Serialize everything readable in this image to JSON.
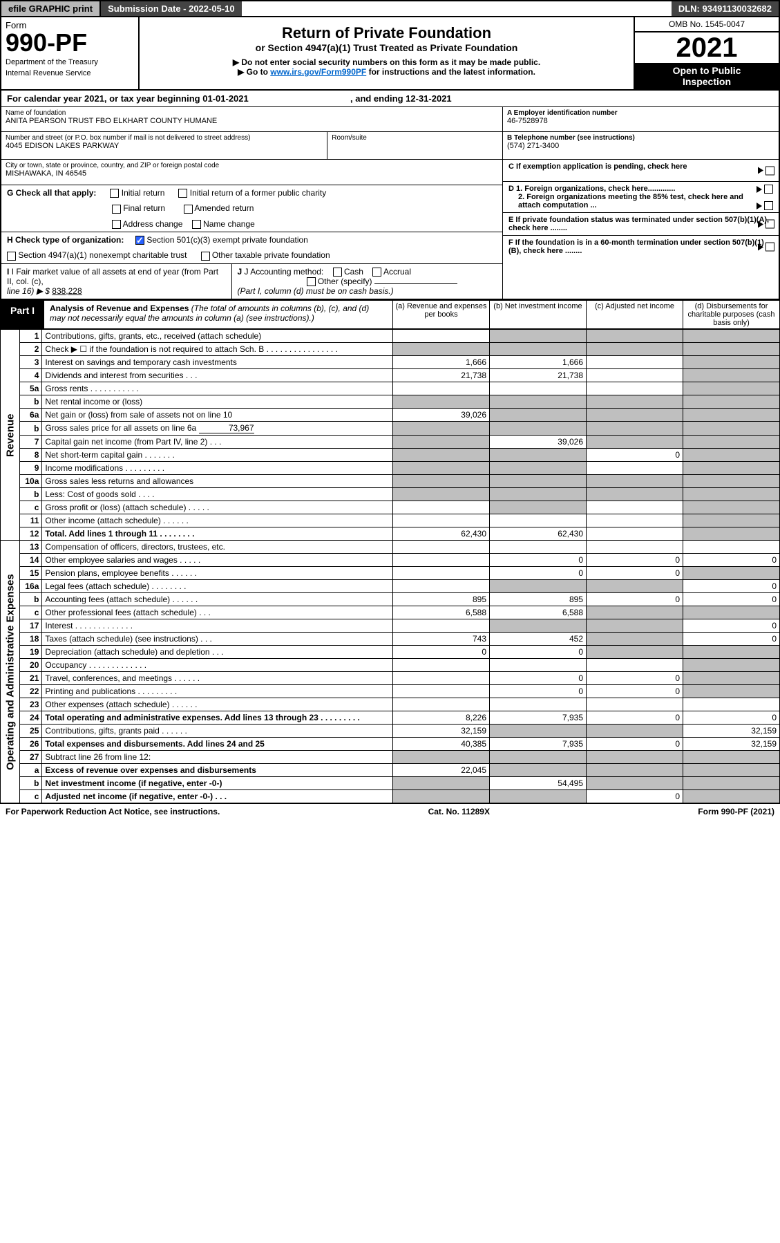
{
  "topbar": {
    "efile": "efile GRAPHIC print",
    "sub_label": "Submission Date - 2022-05-10",
    "dln": "DLN: 93491130032682"
  },
  "header": {
    "form_word": "Form",
    "form_no": "990-PF",
    "dept1": "Department of the Treasury",
    "dept2": "Internal Revenue Service",
    "title": "Return of Private Foundation",
    "subtitle": "or Section 4947(a)(1) Trust Treated as Private Foundation",
    "note1": "▶ Do not enter social security numbers on this form as it may be made public.",
    "note2_pre": "▶ Go to ",
    "note2_link": "www.irs.gov/Form990PF",
    "note2_post": " for instructions and the latest information.",
    "omb": "OMB No. 1545-0047",
    "year": "2021",
    "inspect1": "Open to Public",
    "inspect2": "Inspection"
  },
  "cal": {
    "pre": "For calendar year 2021, or tax year beginning ",
    "begin": "01-01-2021",
    "mid": ", and ending ",
    "end": "12-31-2021"
  },
  "info": {
    "name_lbl": "Name of foundation",
    "name_val": "ANITA PEARSON TRUST FBO ELKHART COUNTY HUMANE",
    "addr_lbl": "Number and street (or P.O. box number if mail is not delivered to street address)",
    "addr_val": "4045 EDISON LAKES PARKWAY",
    "room_lbl": "Room/suite",
    "city_lbl": "City or town, state or province, country, and ZIP or foreign postal code",
    "city_val": "MISHAWAKA, IN  46545",
    "a_lbl": "A Employer identification number",
    "a_val": "46-7528978",
    "b_lbl": "B Telephone number (see instructions)",
    "b_val": "(574) 271-3400",
    "c_lbl": "C If exemption application is pending, check here",
    "d1_lbl": "D 1. Foreign organizations, check here.............",
    "d2_lbl": "2. Foreign organizations meeting the 85% test, check here and attach computation ...",
    "e_lbl": "E  If private foundation status was terminated under section 507(b)(1)(A), check here ........",
    "f_lbl": "F  If the foundation is in a 60-month termination under section 507(b)(1)(B), check here ........"
  },
  "g": {
    "label": "G Check all that apply:",
    "c1": "Initial return",
    "c2": "Initial return of a former public charity",
    "c3": "Final return",
    "c4": "Amended return",
    "c5": "Address change",
    "c6": "Name change"
  },
  "h": {
    "label": "H Check type of organization:",
    "c1": "Section 501(c)(3) exempt private foundation",
    "c2": "Section 4947(a)(1) nonexempt charitable trust",
    "c3": "Other taxable private foundation"
  },
  "i": {
    "label": "I Fair market value of all assets at end of year (from Part II, col. (c),",
    "line": "line 16) ▶ $",
    "val": "838,228"
  },
  "j": {
    "label": "J Accounting method:",
    "c1": "Cash",
    "c2": "Accrual",
    "c3": "Other (specify)",
    "note": "(Part I, column (d) must be on cash basis.)"
  },
  "part1": {
    "label": "Part I",
    "title": "Analysis of Revenue and Expenses",
    "note": "(The total of amounts in columns (b), (c), and (d) may not necessarily equal the amounts in column (a) (see instructions).)",
    "col_a": "(a)  Revenue and expenses per books",
    "col_b": "(b)  Net investment income",
    "col_c": "(c)  Adjusted net income",
    "col_d": "(d)  Disbursements for charitable purposes (cash basis only)"
  },
  "sides": {
    "revenue": "Revenue",
    "expenses": "Operating and Administrative Expenses"
  },
  "rows": {
    "r1": {
      "n": "1",
      "d": "Contributions, gifts, grants, etc., received (attach schedule)"
    },
    "r2": {
      "n": "2",
      "d": "Check ▶ ☐ if the foundation is not required to attach Sch. B    .  .  .  .  .  .  .  .  .  .  .  .  .  .  .  ."
    },
    "r3": {
      "n": "3",
      "d": "Interest on savings and temporary cash investments",
      "a": "1,666",
      "b": "1,666"
    },
    "r4": {
      "n": "4",
      "d": "Dividends and interest from securities    .   .   .",
      "a": "21,738",
      "b": "21,738"
    },
    "r5a": {
      "n": "5a",
      "d": "Gross rents    .   .   .   .   .   .   .   .   .   .   ."
    },
    "r5b": {
      "n": "b",
      "d": "Net rental income or (loss)"
    },
    "r6a": {
      "n": "6a",
      "d": "Net gain or (loss) from sale of assets not on line 10",
      "a": "39,026"
    },
    "r6b": {
      "n": "b",
      "d": "Gross sales price for all assets on line 6a",
      "inline": "73,967"
    },
    "r7": {
      "n": "7",
      "d": "Capital gain net income (from Part IV, line 2)   .   .   .",
      "b": "39,026"
    },
    "r8": {
      "n": "8",
      "d": "Net short-term capital gain   .   .   .   .   .   .   .",
      "c": "0"
    },
    "r9": {
      "n": "9",
      "d": "Income modifications   .   .   .   .   .   .   .   .   ."
    },
    "r10a": {
      "n": "10a",
      "d": "Gross sales less returns and allowances"
    },
    "r10b": {
      "n": "b",
      "d": "Less: Cost of goods sold    .   .   .   ."
    },
    "r10c": {
      "n": "c",
      "d": "Gross profit or (loss) (attach schedule)    .   .   .   .   ."
    },
    "r11": {
      "n": "11",
      "d": "Other income (attach schedule)    .   .   .   .   .   ."
    },
    "r12": {
      "n": "12",
      "d": "Total. Add lines 1 through 11   .   .   .   .   .   .   .   .",
      "a": "62,430",
      "b": "62,430",
      "bold": true
    },
    "r13": {
      "n": "13",
      "d": "Compensation of officers, directors, trustees, etc."
    },
    "r14": {
      "n": "14",
      "d": "Other employee salaries and wages    .   .   .   .   .",
      "b": "0",
      "c": "0",
      "dd": "0"
    },
    "r15": {
      "n": "15",
      "d": "Pension plans, employee benefits   .   .   .   .   .   .",
      "b": "0",
      "c": "0"
    },
    "r16a": {
      "n": "16a",
      "d": "Legal fees (attach schedule)   .   .   .   .   .   .   .   .",
      "dd": "0"
    },
    "r16b": {
      "n": "b",
      "d": "Accounting fees (attach schedule)   .   .   .   .   .   .",
      "a": "895",
      "b": "895",
      "c": "0",
      "dd": "0"
    },
    "r16c": {
      "n": "c",
      "d": "Other professional fees (attach schedule)    .   .   .",
      "a": "6,588",
      "b": "6,588"
    },
    "r17": {
      "n": "17",
      "d": "Interest   .   .   .   .   .   .   .   .   .   .   .   .   .",
      "dd": "0"
    },
    "r18": {
      "n": "18",
      "d": "Taxes (attach schedule) (see instructions)    .   .   .",
      "a": "743",
      "b": "452",
      "dd": "0"
    },
    "r19": {
      "n": "19",
      "d": "Depreciation (attach schedule) and depletion   .   .   .",
      "a": "0",
      "b": "0"
    },
    "r20": {
      "n": "20",
      "d": "Occupancy   .   .   .   .   .   .   .   .   .   .   .   .   ."
    },
    "r21": {
      "n": "21",
      "d": "Travel, conferences, and meetings   .   .   .   .   .   .",
      "b": "0",
      "c": "0"
    },
    "r22": {
      "n": "22",
      "d": "Printing and publications   .   .   .   .   .   .   .   .   .",
      "b": "0",
      "c": "0"
    },
    "r23": {
      "n": "23",
      "d": "Other expenses (attach schedule)   .   .   .   .   .   ."
    },
    "r24": {
      "n": "24",
      "d": "Total operating and administrative expenses. Add lines 13 through 23   .   .   .   .   .   .   .   .   .",
      "a": "8,226",
      "b": "7,935",
      "c": "0",
      "dd": "0",
      "bold": true
    },
    "r25": {
      "n": "25",
      "d": "Contributions, gifts, grants paid    .   .   .   .   .   .",
      "a": "32,159",
      "dd": "32,159"
    },
    "r26": {
      "n": "26",
      "d": "Total expenses and disbursements. Add lines 24 and 25",
      "a": "40,385",
      "b": "7,935",
      "c": "0",
      "dd": "32,159",
      "bold": true
    },
    "r27": {
      "n": "27",
      "d": "Subtract line 26 from line 12:"
    },
    "r27a": {
      "n": "a",
      "d": "Excess of revenue over expenses and disbursements",
      "a": "22,045",
      "bold": true
    },
    "r27b": {
      "n": "b",
      "d": "Net investment income (if negative, enter -0-)",
      "b": "54,495",
      "bold": true
    },
    "r27c": {
      "n": "c",
      "d": "Adjusted net income (if negative, enter -0-)   .   .   .",
      "c": "0",
      "bold": true
    }
  },
  "footer": {
    "left": "For Paperwork Reduction Act Notice, see instructions.",
    "mid": "Cat. No. 11289X",
    "right": "Form 990-PF (2021)"
  },
  "colors": {
    "shade": "#bfbfbf",
    "link": "#0066cc",
    "checked": "#2962ff"
  }
}
